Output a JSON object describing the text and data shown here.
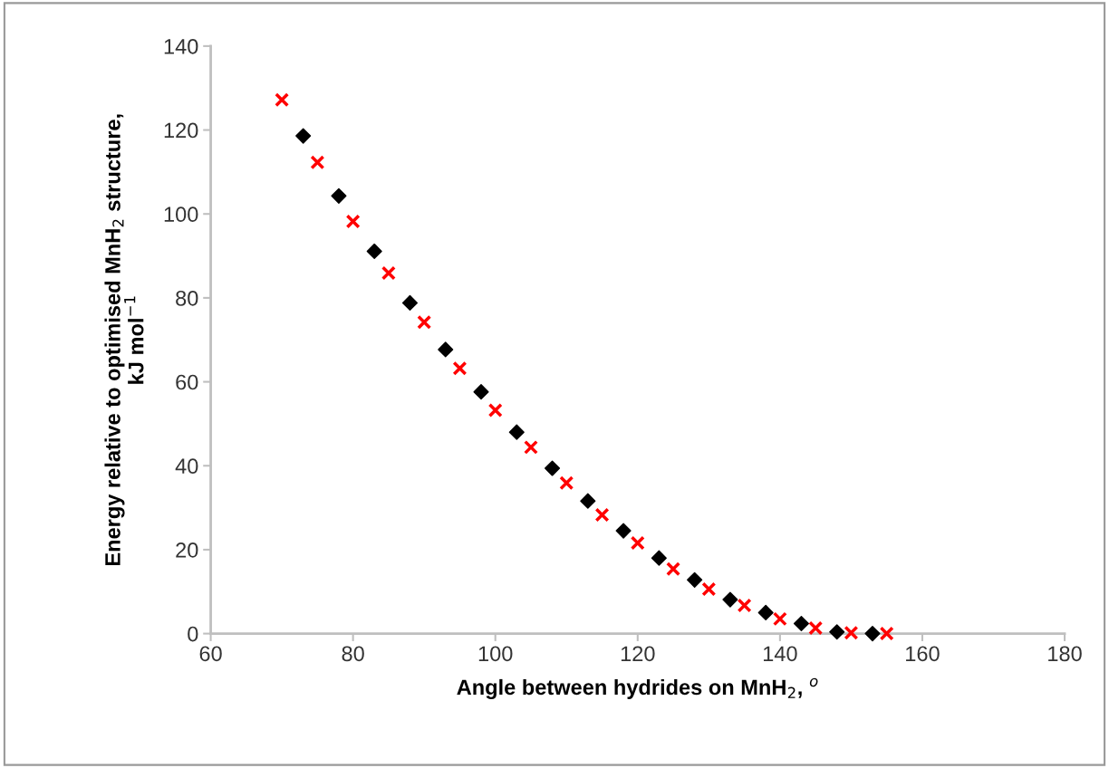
{
  "chart_data": {
    "type": "scatter",
    "xlabel": "Angle between hydrides on MnH$_{2}$, $^{o}$",
    "ylabel": "Energy relative to optimised MnH$_{2}$ structure,\nkJ mol$^{−1}$",
    "xlim": [
      60,
      180
    ],
    "xticks": [
      60,
      80,
      100,
      120,
      140,
      160,
      180
    ],
    "ylim": [
      0,
      140
    ],
    "yticks": [
      0,
      20,
      40,
      60,
      80,
      100,
      120,
      140
    ],
    "grid": false,
    "series": [
      {
        "color": "#000000",
        "marker": "diamond",
        "x": [
          73,
          78,
          83,
          88,
          93,
          98,
          103,
          108,
          113,
          118,
          123,
          128,
          133,
          138,
          143,
          148,
          153
        ],
        "values": [
          118.6,
          104.3,
          91.1,
          78.8,
          67.7,
          57.6,
          48.0,
          39.4,
          31.6,
          24.5,
          18.0,
          12.8,
          8.1,
          5.0,
          2.4,
          0.4,
          0
        ]
      },
      {
        "color": "#ff0000",
        "marker": "cross",
        "x": [
          70,
          75,
          80,
          85,
          90,
          95,
          100,
          105,
          110,
          115,
          120,
          125,
          130,
          135,
          140,
          145,
          150,
          155
        ],
        "values": [
          127.2,
          112.3,
          98.2,
          85.9,
          74.2,
          63.2,
          53.2,
          44.4,
          35.9,
          28.3,
          21.6,
          15.4,
          10.6,
          6.7,
          3.5,
          1.3,
          0.2,
          0
        ]
      }
    ]
  }
}
